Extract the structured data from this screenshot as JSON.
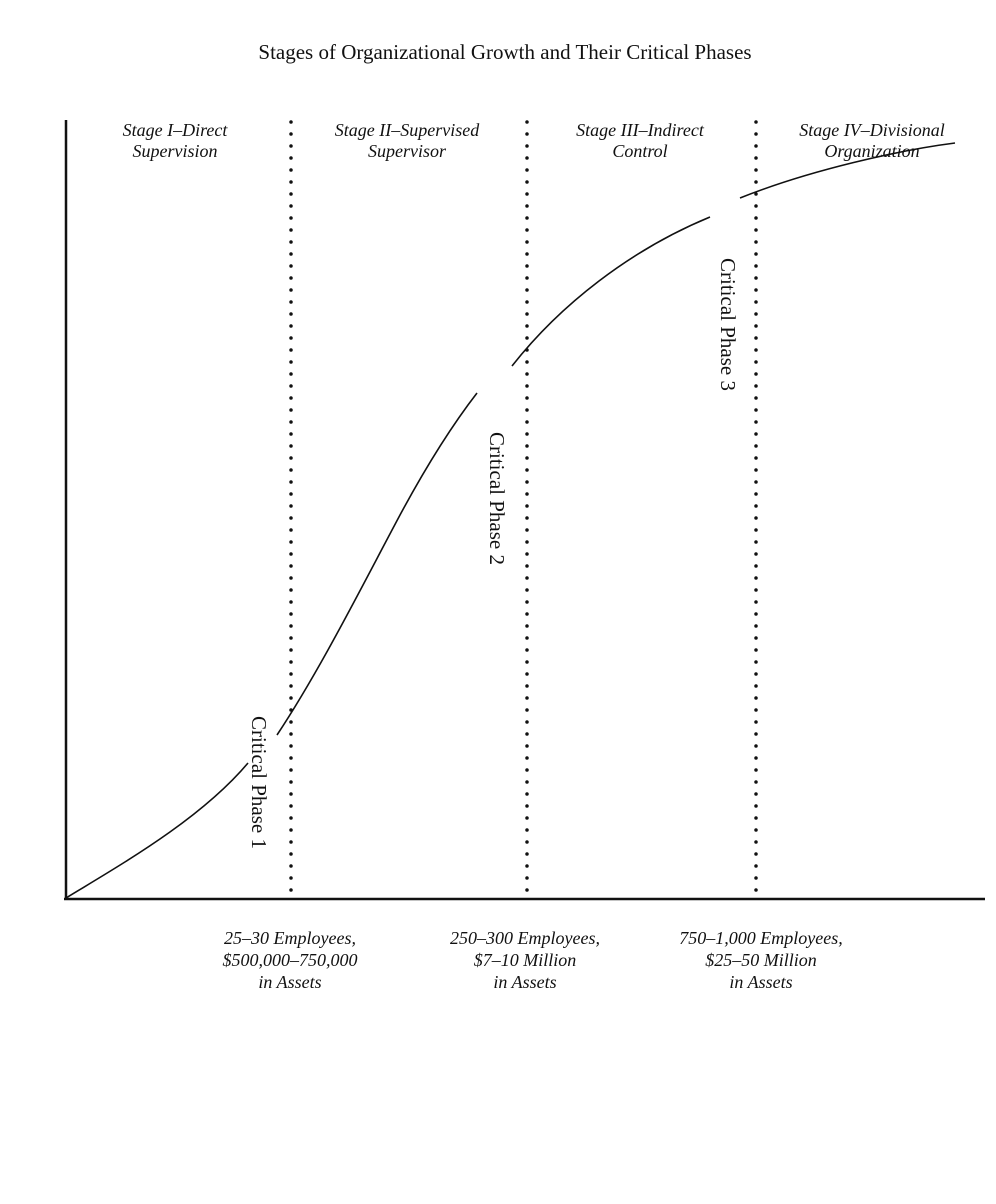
{
  "title": "Stages of Organizational Growth and Their Critical Phases",
  "stages": [
    {
      "label": "Stage I–Direct\nSupervision"
    },
    {
      "label": "Stage II–Supervised\nSupervisor"
    },
    {
      "label": "Stage III–Indirect\nControl"
    },
    {
      "label": "Stage IV–Divisional\nOrganization"
    }
  ],
  "thresholds": [
    {
      "label": "25–30 Employees,\n$500,000–750,000\nin Assets"
    },
    {
      "label": "250–300 Employees,\n$7–10 Million\nin Assets"
    },
    {
      "label": "750–1,000 Employees,\n$25–50 Million\nin Assets"
    }
  ],
  "critical_phases": [
    {
      "label": "Critical Phase 1"
    },
    {
      "label": "Critical Phase 2"
    },
    {
      "label": "Critical Phase 3"
    }
  ],
  "colors": {
    "line": "#111111",
    "background": "#ffffff"
  }
}
